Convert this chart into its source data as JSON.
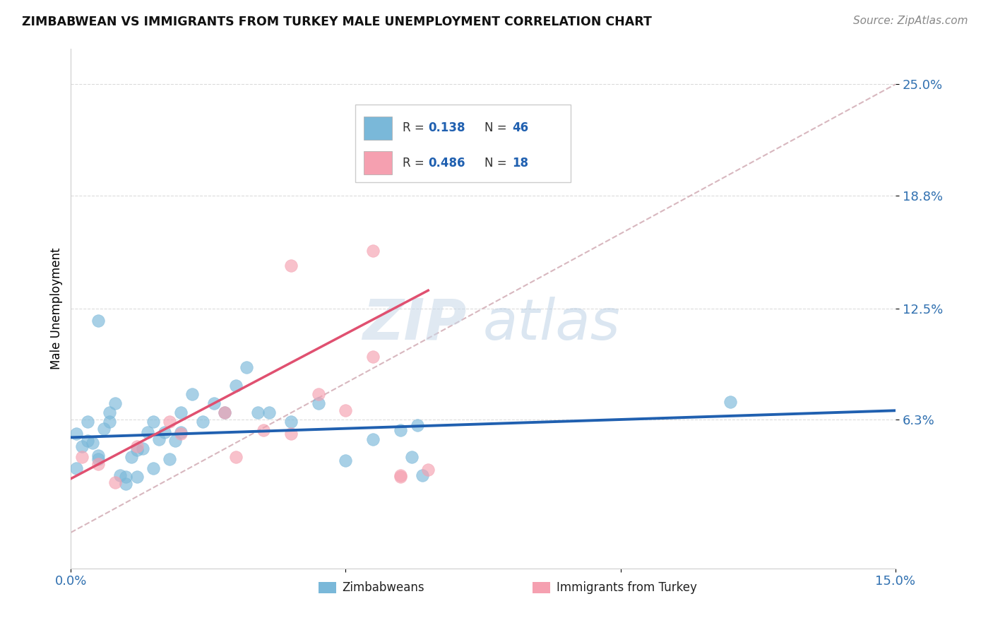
{
  "title": "ZIMBABWEAN VS IMMIGRANTS FROM TURKEY MALE UNEMPLOYMENT CORRELATION CHART",
  "source": "Source: ZipAtlas.com",
  "ylabel": "Male Unemployment",
  "xlim": [
    0.0,
    0.15
  ],
  "ylim": [
    -0.02,
    0.27
  ],
  "yticks": [
    0.063,
    0.125,
    0.188,
    0.25
  ],
  "ytick_labels": [
    "6.3%",
    "12.5%",
    "18.8%",
    "25.0%"
  ],
  "xticks": [
    0.0,
    0.05,
    0.1,
    0.15
  ],
  "xtick_labels": [
    "0.0%",
    "",
    "",
    "15.0%"
  ],
  "r_blue": 0.138,
  "n_blue": 46,
  "r_pink": 0.486,
  "n_pink": 18,
  "blue_color": "#7ab8d9",
  "pink_color": "#f5a0b0",
  "blue_line_color": "#2060b0",
  "pink_line_color": "#e05070",
  "diagonal_line_color": "#d4b0b8",
  "legend_label_blue": "Zimbabweans",
  "legend_label_pink": "Immigrants from Turkey",
  "blue_scatter_x": [
    0.001,
    0.002,
    0.003,
    0.004,
    0.005,
    0.006,
    0.007,
    0.008,
    0.009,
    0.01,
    0.011,
    0.012,
    0.013,
    0.014,
    0.015,
    0.016,
    0.017,
    0.018,
    0.019,
    0.02,
    0.022,
    0.024,
    0.026,
    0.028,
    0.03,
    0.032,
    0.034,
    0.036,
    0.04,
    0.045,
    0.05,
    0.055,
    0.06,
    0.062,
    0.063,
    0.064,
    0.001,
    0.003,
    0.005,
    0.007,
    0.01,
    0.012,
    0.015,
    0.02,
    0.12,
    0.005
  ],
  "blue_scatter_y": [
    0.055,
    0.048,
    0.062,
    0.05,
    0.043,
    0.058,
    0.067,
    0.072,
    0.032,
    0.027,
    0.042,
    0.031,
    0.047,
    0.056,
    0.062,
    0.052,
    0.056,
    0.041,
    0.051,
    0.067,
    0.077,
    0.062,
    0.072,
    0.067,
    0.082,
    0.092,
    0.067,
    0.067,
    0.062,
    0.072,
    0.04,
    0.052,
    0.057,
    0.042,
    0.06,
    0.032,
    0.036,
    0.051,
    0.041,
    0.062,
    0.031,
    0.046,
    0.036,
    0.056,
    0.073,
    0.118
  ],
  "pink_scatter_x": [
    0.002,
    0.005,
    0.008,
    0.012,
    0.018,
    0.02,
    0.028,
    0.03,
    0.035,
    0.04,
    0.045,
    0.05,
    0.055,
    0.04,
    0.055,
    0.06,
    0.06,
    0.065
  ],
  "pink_scatter_y": [
    0.042,
    0.038,
    0.028,
    0.048,
    0.062,
    0.055,
    0.067,
    0.042,
    0.057,
    0.055,
    0.077,
    0.068,
    0.098,
    0.149,
    0.157,
    0.031,
    0.032,
    0.035
  ],
  "watermark_zip": "ZIP",
  "watermark_atlas": "atlas",
  "background_color": "#ffffff",
  "grid_color": "#cccccc"
}
